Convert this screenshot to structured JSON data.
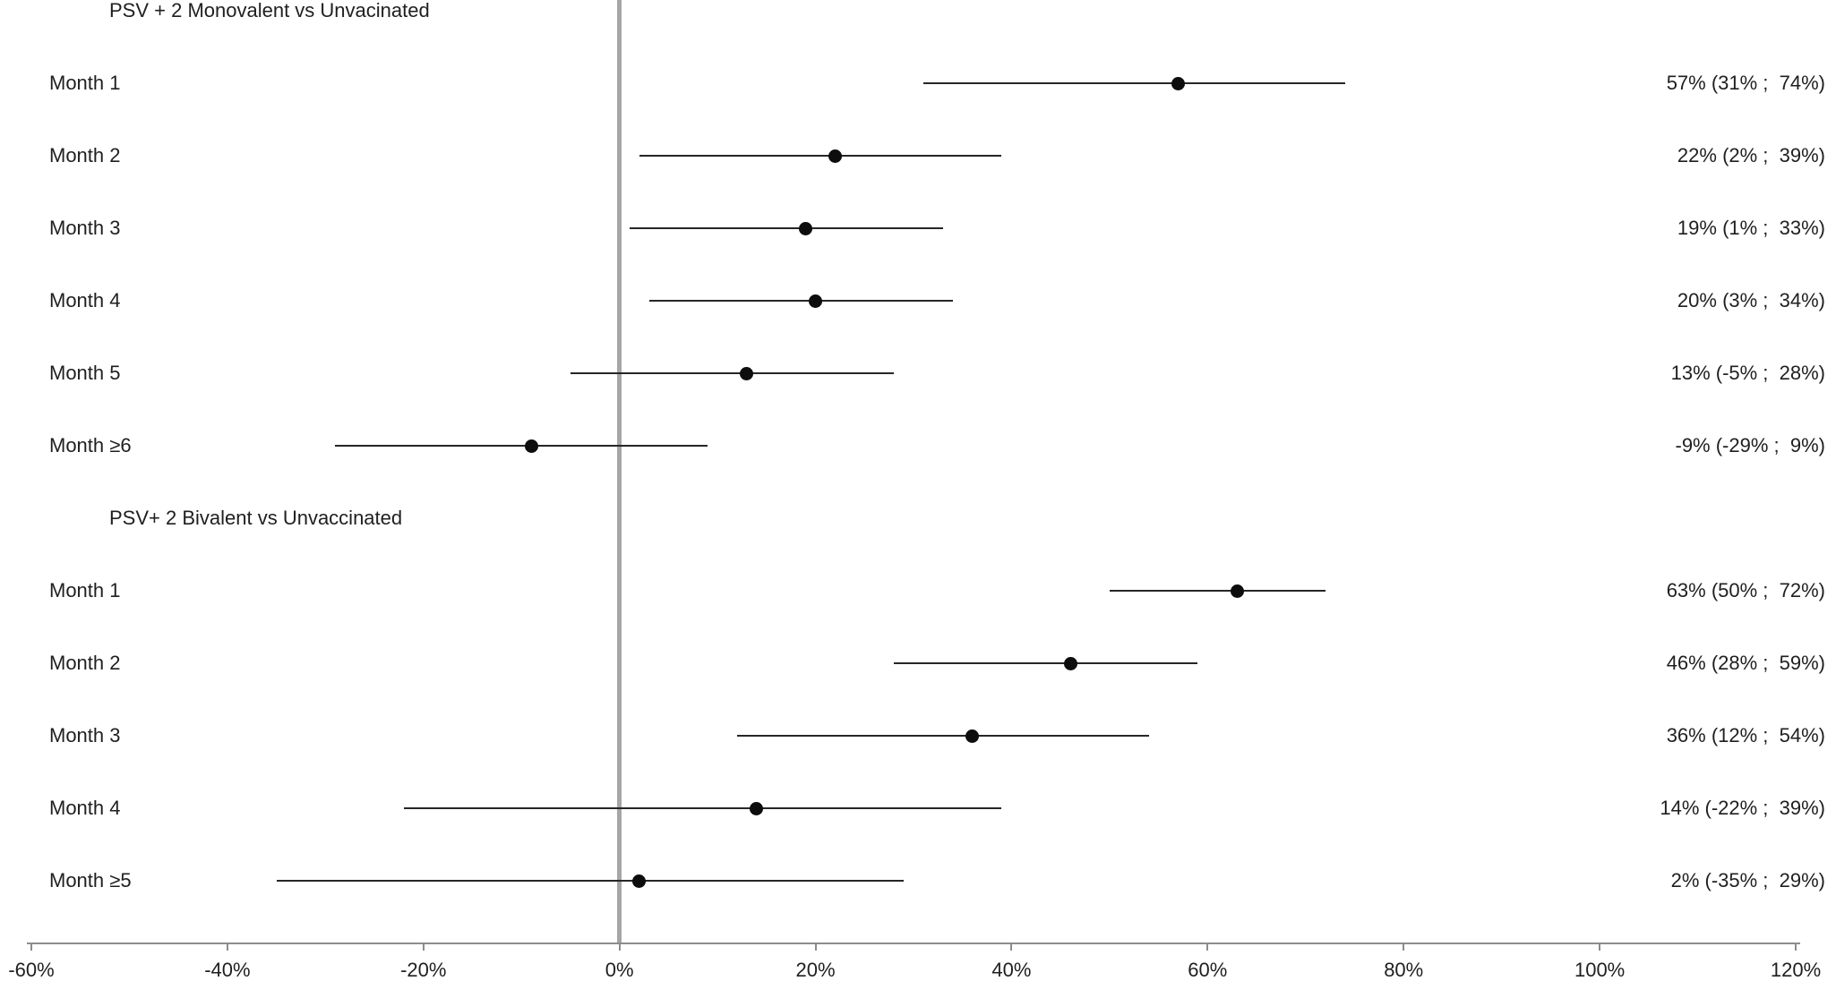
{
  "chart_data": {
    "type": "scatter",
    "variant": "forest-plot",
    "title": "",
    "xlabel": "",
    "ylabel": "",
    "grid": false,
    "legend": "none",
    "reference_line_value": 0,
    "axis": {
      "min": -60,
      "max": 120,
      "tick_step": 20,
      "ticks": [
        {
          "value": -60,
          "label": "-60%"
        },
        {
          "value": -40,
          "label": "-40%"
        },
        {
          "value": -20,
          "label": "-20%"
        },
        {
          "value": 0,
          "label": "0%"
        },
        {
          "value": 20,
          "label": "20%"
        },
        {
          "value": 40,
          "label": "40%"
        },
        {
          "value": 60,
          "label": "60%"
        },
        {
          "value": 80,
          "label": "80%"
        },
        {
          "value": 100,
          "label": "100%"
        },
        {
          "value": 120,
          "label": "120%"
        }
      ]
    },
    "groups": [
      {
        "title": "PSV + 2 Monovalent vs Unvacinated",
        "rows": [
          {
            "category": "Month 1",
            "estimate": 57,
            "lower": 31,
            "upper": 74,
            "label": "57% (31% ;  74%)"
          },
          {
            "category": "Month 2",
            "estimate": 22,
            "lower": 2,
            "upper": 39,
            "label": "22% (2% ;  39%)"
          },
          {
            "category": "Month 3",
            "estimate": 19,
            "lower": 1,
            "upper": 33,
            "label": "19% (1% ;  33%)"
          },
          {
            "category": "Month 4",
            "estimate": 20,
            "lower": 3,
            "upper": 34,
            "label": "20% (3% ;  34%)"
          },
          {
            "category": "Month 5",
            "estimate": 13,
            "lower": -5,
            "upper": 28,
            "label": "13% (-5% ;  28%)"
          },
          {
            "category": "Month ≥6",
            "estimate": -9,
            "lower": -29,
            "upper": 9,
            "label": "-9% (-29% ;  9%)"
          }
        ]
      },
      {
        "title": "PSV+ 2 Bivalent vs Unvaccinated",
        "rows": [
          {
            "category": "Month 1",
            "estimate": 63,
            "lower": 50,
            "upper": 72,
            "label": "63% (50% ;  72%)"
          },
          {
            "category": "Month 2",
            "estimate": 46,
            "lower": 28,
            "upper": 59,
            "label": "46% (28% ;  59%)"
          },
          {
            "category": "Month 3",
            "estimate": 36,
            "lower": 12,
            "upper": 54,
            "label": "36% (12% ;  54%)"
          },
          {
            "category": "Month 4",
            "estimate": 14,
            "lower": -22,
            "upper": 39,
            "label": "14% (-22% ;  39%)"
          },
          {
            "category": "Month ≥5",
            "estimate": 2,
            "lower": -35,
            "upper": 29,
            "label": "2% (-35% ;  29%)"
          }
        ]
      }
    ],
    "colors": {
      "point": "#0d0d0d",
      "ci_line": "#262626",
      "reference_line": "#a6a6a6",
      "axis_line": "#8c8c8c",
      "text": "#1f1f1f"
    }
  }
}
